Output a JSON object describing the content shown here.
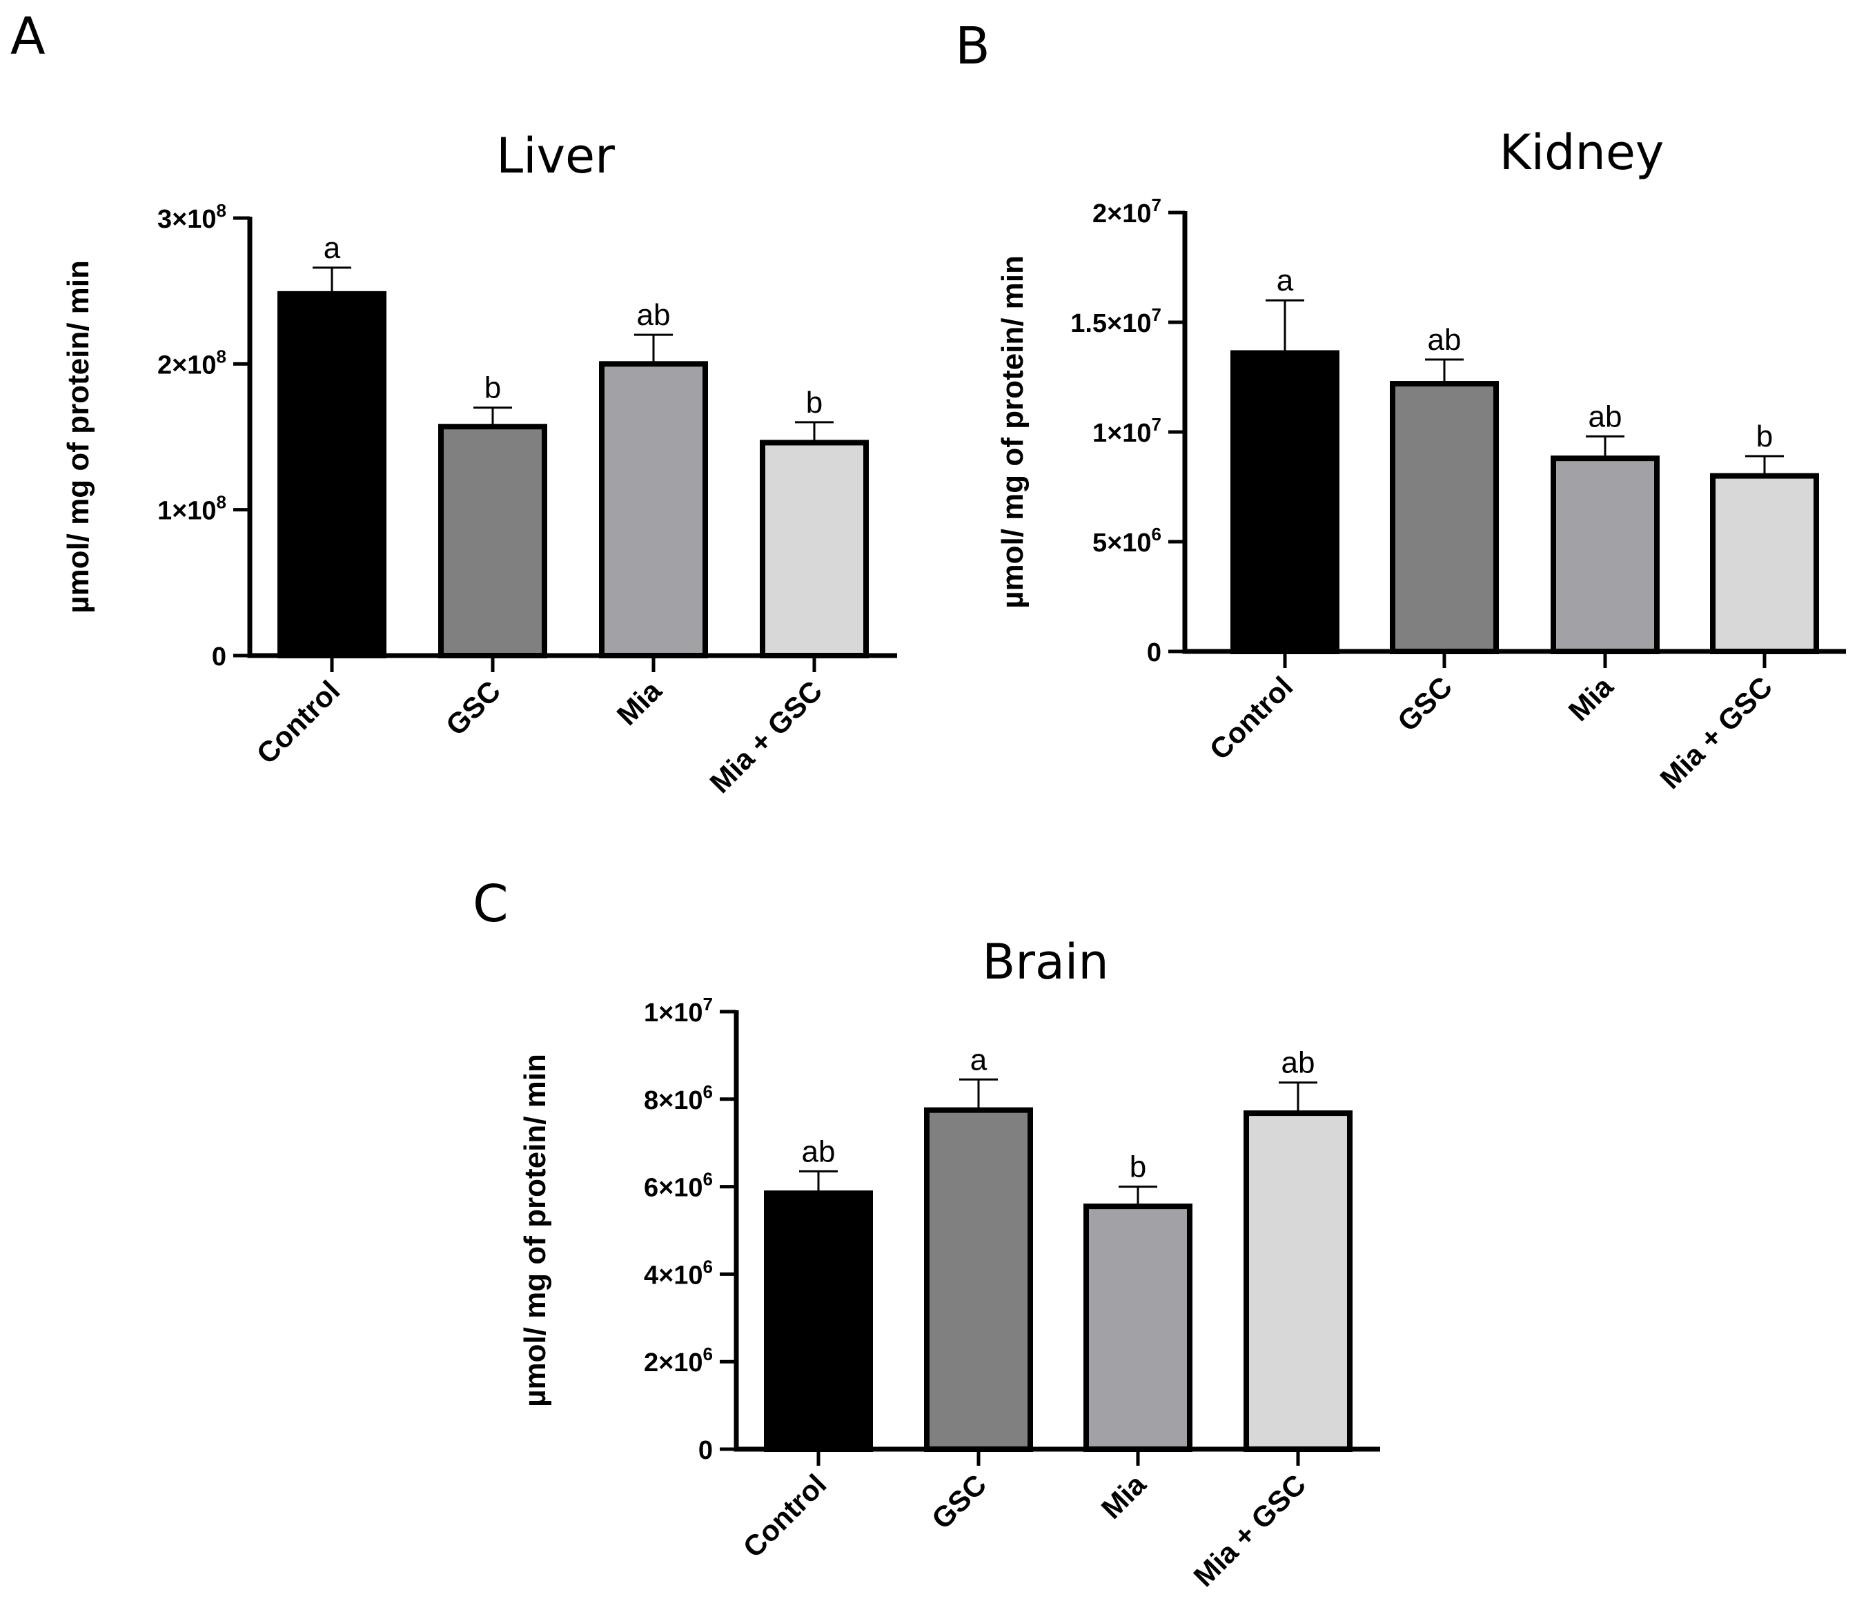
{
  "figure_labels": {
    "panels": [
      "A",
      "B",
      "C"
    ]
  },
  "chart_data": [
    {
      "panel": "A",
      "type": "bar",
      "title": "Liver",
      "xlabel": "",
      "ylabel": "µmol/ mg of protein/ min",
      "categories": [
        "Control",
        "GSC",
        "Mia",
        "Mia + GSC"
      ],
      "values": [
        248000000,
        157000000,
        200000000,
        146000000
      ],
      "errors": [
        18000000,
        13000000,
        20000000,
        14000000
      ],
      "significance": [
        "a",
        "b",
        "ab",
        "b"
      ],
      "colors": [
        "#000000",
        "#808080",
        "#a2a2a6",
        "#d8d8d8"
      ],
      "ylim": [
        0,
        300000000
      ],
      "yticks": [
        {
          "value": 0,
          "mantissa": "0",
          "exp": ""
        },
        {
          "value": 100000000,
          "mantissa": "1×10",
          "exp": "8"
        },
        {
          "value": 200000000,
          "mantissa": "2×10",
          "exp": "8"
        },
        {
          "value": 300000000,
          "mantissa": "3×10",
          "exp": "8"
        }
      ]
    },
    {
      "panel": "B",
      "type": "bar",
      "title": "Kidney",
      "xlabel": "",
      "ylabel": "µmol/ mg of protein/ min",
      "categories": [
        "Control",
        "GSC",
        "Mia",
        "Mia + GSC"
      ],
      "values": [
        13600000,
        12200000,
        8800000,
        8000000
      ],
      "errors": [
        2400000,
        1100000,
        1000000,
        900000
      ],
      "significance": [
        "a",
        "ab",
        "ab",
        "b"
      ],
      "colors": [
        "#000000",
        "#808080",
        "#a2a2a6",
        "#d8d8d8"
      ],
      "ylim": [
        0,
        20000000
      ],
      "yticks": [
        {
          "value": 0,
          "mantissa": "0",
          "exp": ""
        },
        {
          "value": 5000000,
          "mantissa": "5×10",
          "exp": "6"
        },
        {
          "value": 10000000,
          "mantissa": "1×10",
          "exp": "7"
        },
        {
          "value": 15000000,
          "mantissa": "1.5×10",
          "exp": "7"
        },
        {
          "value": 20000000,
          "mantissa": "2×10",
          "exp": "7"
        }
      ]
    },
    {
      "panel": "C",
      "type": "bar",
      "title": "Brain",
      "xlabel": "",
      "ylabel": "µmol/ mg of protein/ min",
      "categories": [
        "Control",
        "GSC",
        "Mia",
        "Mia + GSC"
      ],
      "values": [
        5850000,
        7750000,
        5550000,
        7680000
      ],
      "errors": [
        500000,
        700000,
        450000,
        700000
      ],
      "significance": [
        "ab",
        "a",
        "b",
        "ab"
      ],
      "colors": [
        "#000000",
        "#808080",
        "#a2a2a6",
        "#d8d8d8"
      ],
      "ylim": [
        0,
        10000000
      ],
      "yticks": [
        {
          "value": 0,
          "mantissa": "0",
          "exp": ""
        },
        {
          "value": 2000000,
          "mantissa": "2×10",
          "exp": "6"
        },
        {
          "value": 4000000,
          "mantissa": "4×10",
          "exp": "6"
        },
        {
          "value": 6000000,
          "mantissa": "6×10",
          "exp": "6"
        },
        {
          "value": 8000000,
          "mantissa": "8×10",
          "exp": "6"
        },
        {
          "value": 10000000,
          "mantissa": "1×10",
          "exp": "7"
        }
      ]
    }
  ]
}
